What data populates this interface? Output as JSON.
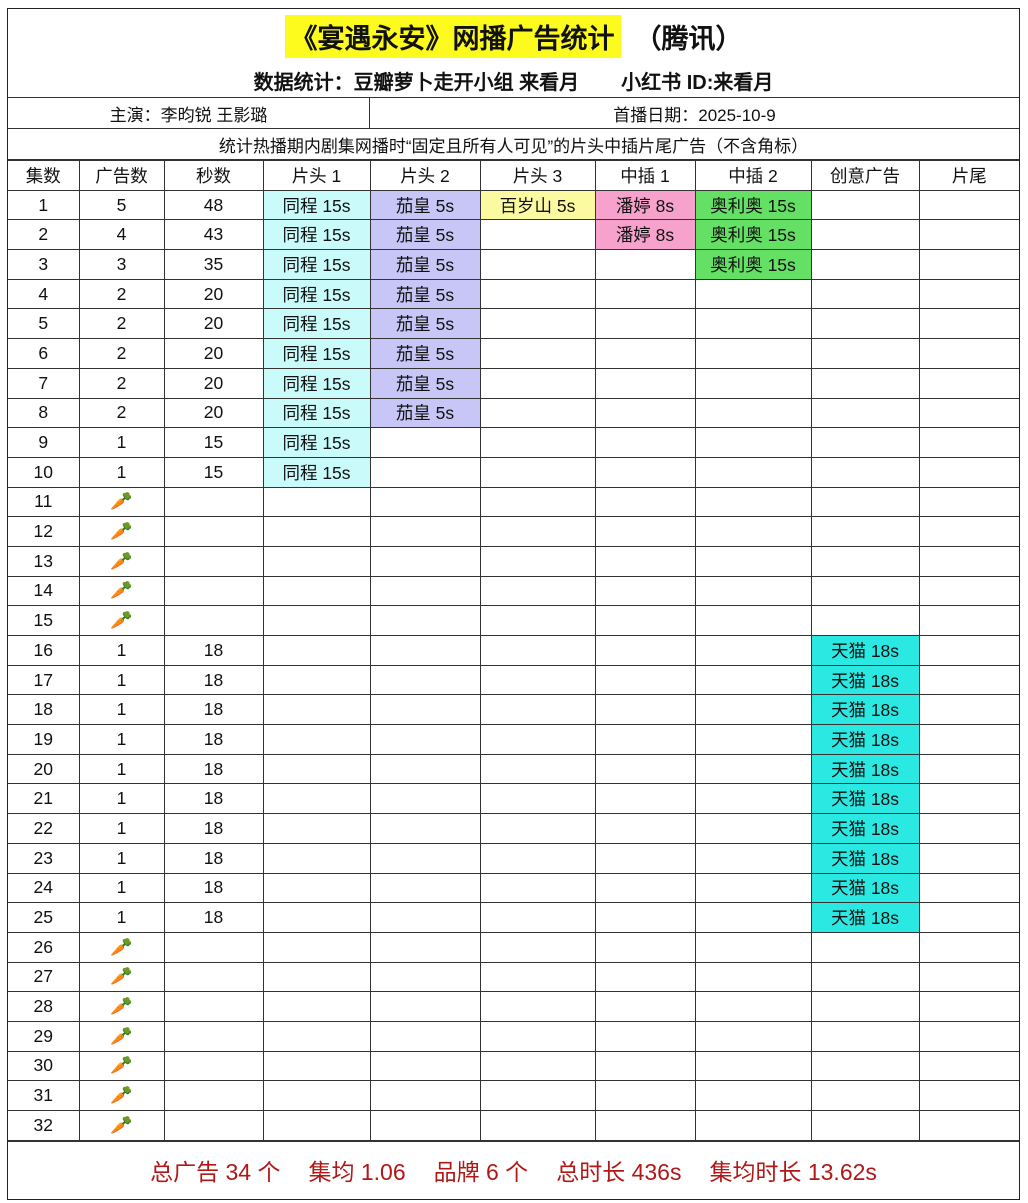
{
  "header": {
    "title": "《宴遇永安》网播广告统计",
    "platform": "（腾讯）",
    "credit": "数据统计：豆瓣萝卜走开小组 来看月",
    "xiaohongshu": "小红书 ID:来看月",
    "cast": "主演：李昀锐 王影璐",
    "premiere": "首播日期：2025-10-9",
    "note": "统计热播期内剧集网播时“固定且所有人可见”的片头中插片尾广告（不含角标）"
  },
  "colors": {
    "title_highlight": "#fdfa1e",
    "同程": "#c9fbfb",
    "茄皇": "#c8c6f6",
    "百岁山": "#fcfaa0",
    "潘婷": "#f6a2cc",
    "奥利奥": "#64e064",
    "天猫": "#2ae8e2",
    "footer_text": "#b01818"
  },
  "columns": [
    "集数",
    "广告数",
    "秒数",
    "片头 1",
    "片头 2",
    "片头 3",
    "中插 1",
    "中插 2",
    "创意广告",
    "片尾"
  ],
  "no_data_icon": "carrot-icon",
  "rows": [
    {
      "ep": "1",
      "ads": "5",
      "sec": "48",
      "cells": [
        "同程 15s",
        "茄皇 5s",
        "百岁山 5s",
        "潘婷 8s",
        "奥利奥 15s",
        "",
        ""
      ]
    },
    {
      "ep": "2",
      "ads": "4",
      "sec": "43",
      "cells": [
        "同程 15s",
        "茄皇 5s",
        "",
        "潘婷 8s",
        "奥利奥 15s",
        "",
        ""
      ]
    },
    {
      "ep": "3",
      "ads": "3",
      "sec": "35",
      "cells": [
        "同程 15s",
        "茄皇 5s",
        "",
        "",
        "奥利奥 15s",
        "",
        ""
      ]
    },
    {
      "ep": "4",
      "ads": "2",
      "sec": "20",
      "cells": [
        "同程 15s",
        "茄皇 5s",
        "",
        "",
        "",
        "",
        ""
      ]
    },
    {
      "ep": "5",
      "ads": "2",
      "sec": "20",
      "cells": [
        "同程 15s",
        "茄皇 5s",
        "",
        "",
        "",
        "",
        ""
      ]
    },
    {
      "ep": "6",
      "ads": "2",
      "sec": "20",
      "cells": [
        "同程 15s",
        "茄皇 5s",
        "",
        "",
        "",
        "",
        ""
      ]
    },
    {
      "ep": "7",
      "ads": "2",
      "sec": "20",
      "cells": [
        "同程 15s",
        "茄皇 5s",
        "",
        "",
        "",
        "",
        ""
      ]
    },
    {
      "ep": "8",
      "ads": "2",
      "sec": "20",
      "cells": [
        "同程 15s",
        "茄皇 5s",
        "",
        "",
        "",
        "",
        ""
      ]
    },
    {
      "ep": "9",
      "ads": "1",
      "sec": "15",
      "cells": [
        "同程 15s",
        "",
        "",
        "",
        "",
        "",
        ""
      ]
    },
    {
      "ep": "10",
      "ads": "1",
      "sec": "15",
      "cells": [
        "同程 15s",
        "",
        "",
        "",
        "",
        "",
        ""
      ]
    },
    {
      "ep": "11",
      "carrot": true
    },
    {
      "ep": "12",
      "carrot": true
    },
    {
      "ep": "13",
      "carrot": true
    },
    {
      "ep": "14",
      "carrot": true
    },
    {
      "ep": "15",
      "carrot": true
    },
    {
      "ep": "16",
      "ads": "1",
      "sec": "18",
      "cells": [
        "",
        "",
        "",
        "",
        "",
        "天猫 18s",
        ""
      ]
    },
    {
      "ep": "17",
      "ads": "1",
      "sec": "18",
      "cells": [
        "",
        "",
        "",
        "",
        "",
        "天猫 18s",
        ""
      ]
    },
    {
      "ep": "18",
      "ads": "1",
      "sec": "18",
      "cells": [
        "",
        "",
        "",
        "",
        "",
        "天猫 18s",
        ""
      ]
    },
    {
      "ep": "19",
      "ads": "1",
      "sec": "18",
      "cells": [
        "",
        "",
        "",
        "",
        "",
        "天猫 18s",
        ""
      ]
    },
    {
      "ep": "20",
      "ads": "1",
      "sec": "18",
      "cells": [
        "",
        "",
        "",
        "",
        "",
        "天猫 18s",
        ""
      ]
    },
    {
      "ep": "21",
      "ads": "1",
      "sec": "18",
      "cells": [
        "",
        "",
        "",
        "",
        "",
        "天猫 18s",
        ""
      ]
    },
    {
      "ep": "22",
      "ads": "1",
      "sec": "18",
      "cells": [
        "",
        "",
        "",
        "",
        "",
        "天猫 18s",
        ""
      ]
    },
    {
      "ep": "23",
      "ads": "1",
      "sec": "18",
      "cells": [
        "",
        "",
        "",
        "",
        "",
        "天猫 18s",
        ""
      ]
    },
    {
      "ep": "24",
      "ads": "1",
      "sec": "18",
      "cells": [
        "",
        "",
        "",
        "",
        "",
        "天猫 18s",
        ""
      ]
    },
    {
      "ep": "25",
      "ads": "1",
      "sec": "18",
      "cells": [
        "",
        "",
        "",
        "",
        "",
        "天猫 18s",
        ""
      ]
    },
    {
      "ep": "26",
      "carrot": true
    },
    {
      "ep": "27",
      "carrot": true
    },
    {
      "ep": "28",
      "carrot": true
    },
    {
      "ep": "29",
      "carrot": true
    },
    {
      "ep": "30",
      "carrot": true
    },
    {
      "ep": "31",
      "carrot": true
    },
    {
      "ep": "32",
      "carrot": true
    }
  ],
  "footer": {
    "total_ads": "总广告 34 个",
    "avg_per_ep": "集均 1.06",
    "brands": "品牌 6 个",
    "total_duration": "总时长 436s",
    "avg_duration": "集均时长 13.62s"
  }
}
